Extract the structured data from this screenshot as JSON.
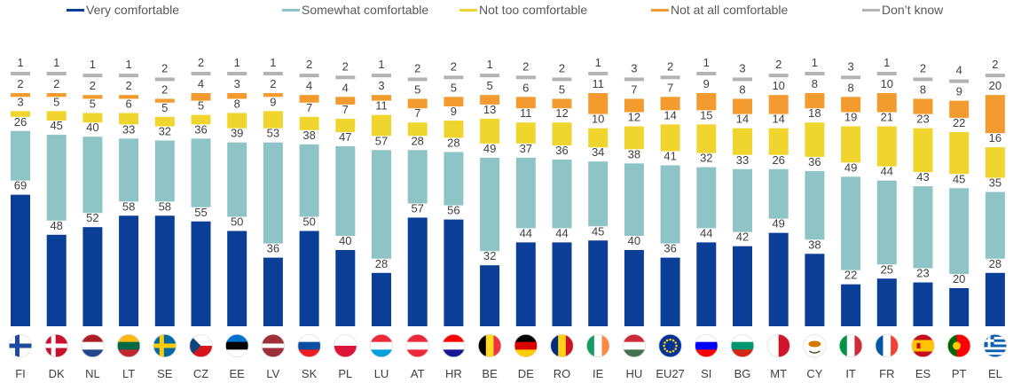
{
  "chart_data": {
    "type": "bar",
    "stacked": true,
    "title": "",
    "xlabel": "",
    "ylabel": "",
    "ylim": [
      0,
      100
    ],
    "grid": false,
    "legend_position": "top",
    "categories": [
      "FI",
      "DK",
      "NL",
      "LT",
      "SE",
      "CZ",
      "EE",
      "LV",
      "SK",
      "PL",
      "LU",
      "AT",
      "HR",
      "BE",
      "DE",
      "RO",
      "IE",
      "HU",
      "EU27",
      "SI",
      "BG",
      "MT",
      "CY",
      "IT",
      "FR",
      "ES",
      "PT",
      "EL"
    ],
    "series": [
      {
        "name": "Very comfortable",
        "color": "#0b3f97",
        "values": [
          69,
          48,
          52,
          58,
          58,
          55,
          50,
          36,
          50,
          40,
          28,
          57,
          56,
          32,
          44,
          44,
          45,
          40,
          36,
          44,
          42,
          49,
          38,
          22,
          25,
          23,
          20,
          28
        ]
      },
      {
        "name": "Somewhat comfortable",
        "color": "#8fc4c6",
        "values": [
          26,
          45,
          40,
          33,
          32,
          36,
          39,
          53,
          38,
          47,
          57,
          28,
          28,
          49,
          37,
          36,
          34,
          38,
          41,
          32,
          33,
          26,
          36,
          49,
          44,
          43,
          45,
          35
        ]
      },
      {
        "name": "Not too comfortable",
        "color": "#f1d52f",
        "values": [
          3,
          5,
          5,
          6,
          5,
          5,
          8,
          9,
          7,
          7,
          11,
          7,
          9,
          13,
          11,
          12,
          10,
          12,
          14,
          15,
          14,
          14,
          18,
          19,
          21,
          23,
          22,
          16
        ]
      },
      {
        "name": "Not at all comfortable",
        "color": "#f39b2e",
        "values": [
          2,
          2,
          2,
          2,
          2,
          4,
          3,
          2,
          4,
          4,
          3,
          5,
          5,
          5,
          6,
          5,
          11,
          7,
          7,
          9,
          8,
          10,
          8,
          8,
          10,
          8,
          9,
          20
        ]
      },
      {
        "name": "Don’t know",
        "color": "#b3b3b3",
        "values": [
          1,
          1,
          1,
          1,
          2,
          2,
          1,
          1,
          2,
          2,
          1,
          2,
          2,
          1,
          2,
          2,
          1,
          3,
          2,
          1,
          3,
          2,
          1,
          3,
          1,
          2,
          4,
          2
        ]
      }
    ]
  },
  "flags": {
    "FI": {
      "type": "nordic",
      "bg": "#ffffff",
      "cross": "#1a4ba0"
    },
    "DK": {
      "type": "nordic",
      "bg": "#c8102e",
      "cross": "#ffffff"
    },
    "NL": {
      "type": "h3",
      "colors": [
        "#ae1c28",
        "#ffffff",
        "#21468b"
      ]
    },
    "LT": {
      "type": "h3",
      "colors": [
        "#fdb913",
        "#006a44",
        "#c1272d"
      ]
    },
    "SE": {
      "type": "nordic",
      "bg": "#006aa7",
      "cross": "#fecc00"
    },
    "CZ": {
      "type": "cz",
      "colors": [
        "#ffffff",
        "#d7141a",
        "#11457e"
      ]
    },
    "EE": {
      "type": "h3",
      "colors": [
        "#0072ce",
        "#000000",
        "#ffffff"
      ]
    },
    "LV": {
      "type": "lv",
      "colors": [
        "#9e3039",
        "#ffffff"
      ]
    },
    "SK": {
      "type": "h3",
      "colors": [
        "#ffffff",
        "#0b4ea2",
        "#ee1c25"
      ]
    },
    "PL": {
      "type": "h2",
      "colors": [
        "#ffffff",
        "#dc143c"
      ]
    },
    "LU": {
      "type": "h3",
      "colors": [
        "#ed2939",
        "#ffffff",
        "#00a1de"
      ]
    },
    "AT": {
      "type": "h3",
      "colors": [
        "#ed2939",
        "#ffffff",
        "#ed2939"
      ]
    },
    "HR": {
      "type": "h3",
      "colors": [
        "#ff0000",
        "#ffffff",
        "#171796"
      ]
    },
    "BE": {
      "type": "v3",
      "colors": [
        "#000000",
        "#fdda24",
        "#ef3340"
      ]
    },
    "DE": {
      "type": "h3",
      "colors": [
        "#000000",
        "#dd0000",
        "#ffce00"
      ]
    },
    "RO": {
      "type": "v3",
      "colors": [
        "#002b7f",
        "#fcd116",
        "#ce1126"
      ]
    },
    "IE": {
      "type": "v3",
      "colors": [
        "#169b62",
        "#ffffff",
        "#ff883e"
      ]
    },
    "HU": {
      "type": "h3",
      "colors": [
        "#ce2939",
        "#ffffff",
        "#477050"
      ]
    },
    "EU27": {
      "type": "eu",
      "colors": [
        "#003399",
        "#ffcc00"
      ]
    },
    "SI": {
      "type": "h3",
      "colors": [
        "#ffffff",
        "#0000ff",
        "#ff0000"
      ]
    },
    "BG": {
      "type": "h3",
      "colors": [
        "#ffffff",
        "#00966e",
        "#d62612"
      ]
    },
    "MT": {
      "type": "v2",
      "colors": [
        "#ffffff",
        "#cf142b"
      ]
    },
    "CY": {
      "type": "cy",
      "colors": [
        "#ffffff",
        "#d57800",
        "#4e5b31"
      ]
    },
    "IT": {
      "type": "v3",
      "colors": [
        "#009246",
        "#ffffff",
        "#ce2b37"
      ]
    },
    "FR": {
      "type": "v3",
      "colors": [
        "#0055a4",
        "#ffffff",
        "#ef4135"
      ]
    },
    "ES": {
      "type": "es",
      "colors": [
        "#c60b1e",
        "#ffc400",
        "#c60b1e"
      ]
    },
    "PT": {
      "type": "pt",
      "colors": [
        "#006600",
        "#ff0000",
        "#ffcc00"
      ]
    },
    "EL": {
      "type": "gr",
      "colors": [
        "#0d5eaf",
        "#ffffff"
      ]
    }
  }
}
